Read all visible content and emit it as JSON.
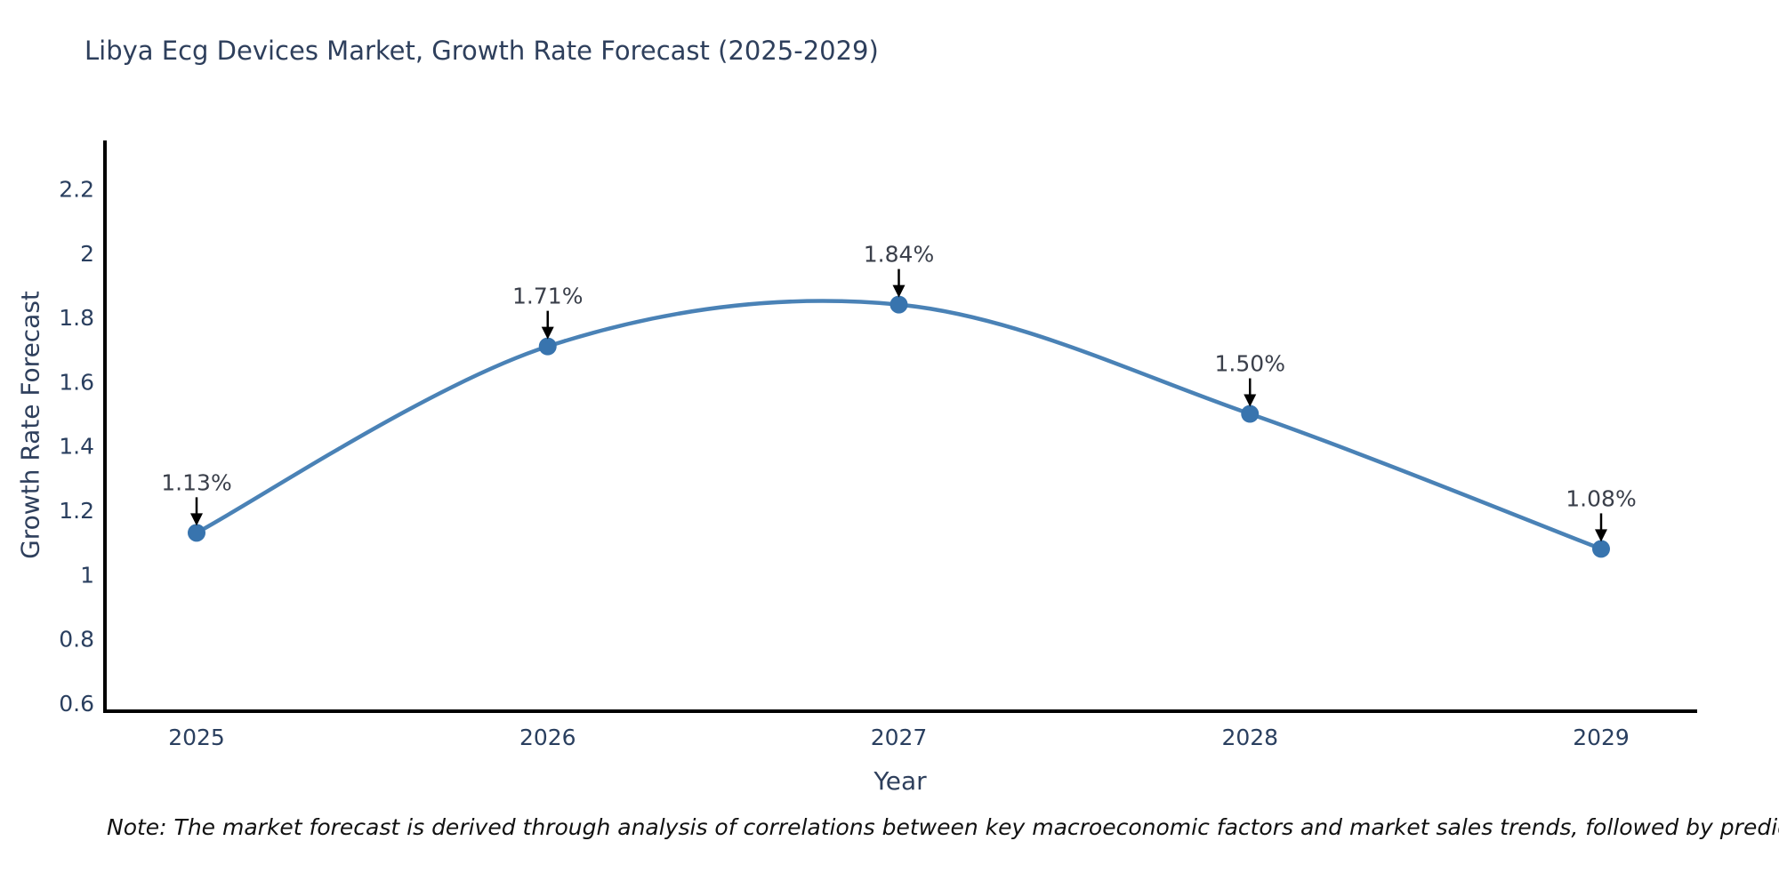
{
  "page": {
    "background": "#ffffff"
  },
  "note": "Note: The market forecast is derived through analysis of correlations between key macroeconomic factors and market sales trends, followed by predictive modeling to project future sales",
  "chart_data": {
    "type": "line",
    "title": "Libya Ecg Devices Market, Growth Rate Forecast (2025-2029)",
    "xlabel": "Year",
    "ylabel": "Growth Rate Forecast",
    "x": [
      2025,
      2026,
      2027,
      2028,
      2029
    ],
    "xtick_labels": [
      "2025",
      "2026",
      "2027",
      "2028",
      "2029"
    ],
    "series": [
      {
        "name": "Growth Rate Forecast",
        "values": [
          1.13,
          1.71,
          1.84,
          1.5,
          1.08
        ],
        "point_labels": [
          "1.13%",
          "1.71%",
          "1.84%",
          "1.50%",
          "1.08%"
        ]
      }
    ],
    "yticks": [
      0.6,
      0.8,
      1,
      1.2,
      1.4,
      1.6,
      1.8,
      2,
      2.2
    ],
    "ytick_labels": [
      "0.6",
      "0.8",
      "1",
      "1.2",
      "1.4",
      "1.6",
      "1.8",
      "2",
      "2.2"
    ],
    "ylim": [
      0.575,
      2.34
    ],
    "line_shape": "spline",
    "grid": false,
    "legend_position": "none",
    "annotation_style": "black down-arrow from value label to marker",
    "colors": {
      "line": "#4a82b6",
      "marker": "#3874ae",
      "axis": "#000000",
      "arrow": "#000000",
      "title_text": "#2e3f5c",
      "tick_text": "#2a3f5f",
      "annotation_text": "#3a3f4a",
      "note_text": "#111111",
      "background": "#ffffff"
    }
  }
}
